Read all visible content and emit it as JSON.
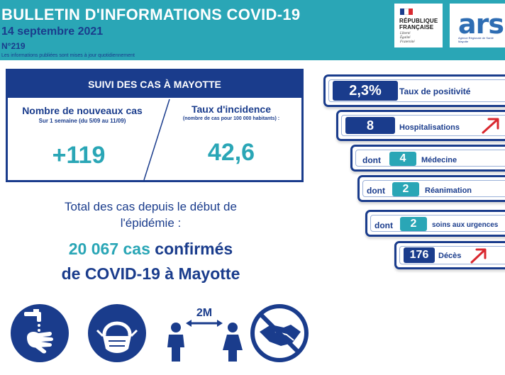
{
  "header": {
    "title": "BULLETIN D'INFORMATIONS COVID-19",
    "date": "14 septembre 2021",
    "number": "N°219",
    "note": "Les informations publiées sont mises à jour quotidiennement"
  },
  "logos": {
    "republique_line1": "RÉPUBLIQUE",
    "republique_line2": "FRANÇAISE",
    "republique_motto": "Liberté\nÉgalité\nFraternité",
    "ars_word": "ars",
    "ars_subtitle": "Agence Régionale de Santé Mayotte"
  },
  "suivi": {
    "title": "SUIVI DES CAS À MAYOTTE",
    "new_cases_title": "Nombre de nouveaux cas",
    "new_cases_sub": "Sur 1 semaine (du 5/09 au 11/09)",
    "new_cases_value": "+119",
    "incidence_title": "Taux d'incidence",
    "incidence_sub": "(nombre de cas pour 100 000 habitants) :",
    "incidence_value": "42,6"
  },
  "total": {
    "line1": "Total des cas depuis le début de",
    "line2": "l'épidémie :",
    "count": "20 067 cas",
    "confirmed": " confirmés",
    "line4": "de COVID-19 à Mayotte"
  },
  "indicators": {
    "positivity_value": "2,3%",
    "positivity_label": "Taux de positivité",
    "hosp_value": "8",
    "hosp_label": "Hospitalisations",
    "dont": "dont",
    "medecine_value": "4",
    "medecine_label": "Médecine",
    "reanimation_value": "2",
    "reanimation_label": "Réanimation",
    "urgences_value": "2",
    "urgences_label": "soins aux urgences",
    "deces_value": "176",
    "deces_label": "Décès"
  },
  "icons": [
    "handwashing-icon",
    "face-mask-icon",
    "social-distancing-icon",
    "no-handshake-icon"
  ],
  "colors": {
    "navy": "#1a3c8c",
    "teal": "#2aa6b6",
    "red": "#d9282f",
    "ars_green": "#7cba3c"
  },
  "distance_label": "2M"
}
